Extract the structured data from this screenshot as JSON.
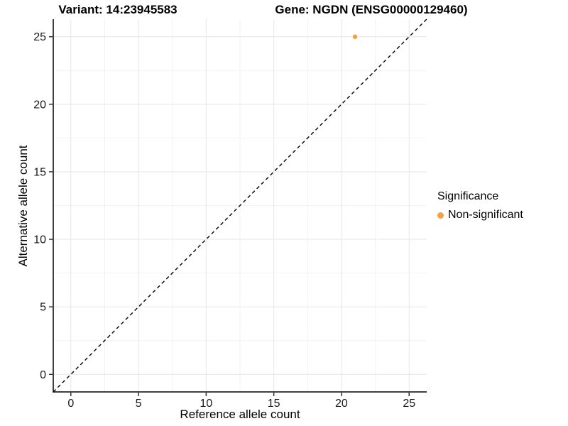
{
  "titles": {
    "variant": "Variant: 14:23945583",
    "gene": "Gene: NGDN (ENSG00000129460)"
  },
  "axes": {
    "x_label": "Reference allele count",
    "y_label": "Alternative allele count"
  },
  "legend": {
    "title": "Significance",
    "items": [
      {
        "label": "Non-significant",
        "color": "#F9A03C"
      }
    ]
  },
  "colors": {
    "background": "#FFFFFF",
    "axis_line": "#404040",
    "tick_mark": "#333333",
    "grid_major": "#E6E6E6",
    "grid_minor": "#F2F2F2",
    "reference_line": "#000000",
    "point": "#F9A03C"
  },
  "chart_data": {
    "type": "scatter",
    "title": "Variant: 14:23945583   Gene: NGDN (ENSG00000129460)",
    "xlabel": "Reference allele count",
    "ylabel": "Alternative allele count",
    "x_ticks": [
      0,
      5,
      10,
      15,
      20,
      25
    ],
    "y_ticks": [
      0,
      5,
      10,
      15,
      20,
      25
    ],
    "xlim": [
      -1.3,
      26.3
    ],
    "ylim": [
      -1.3,
      26.3
    ],
    "minor_step": 2.5,
    "grid": true,
    "legend_position": "right",
    "series": [
      {
        "name": "Non-significant",
        "color": "#F9A03C",
        "points": [
          {
            "x": 21,
            "y": 25
          }
        ]
      }
    ],
    "reference_line": {
      "type": "identity",
      "slope": 1,
      "intercept": 0,
      "style": "dashed"
    }
  }
}
